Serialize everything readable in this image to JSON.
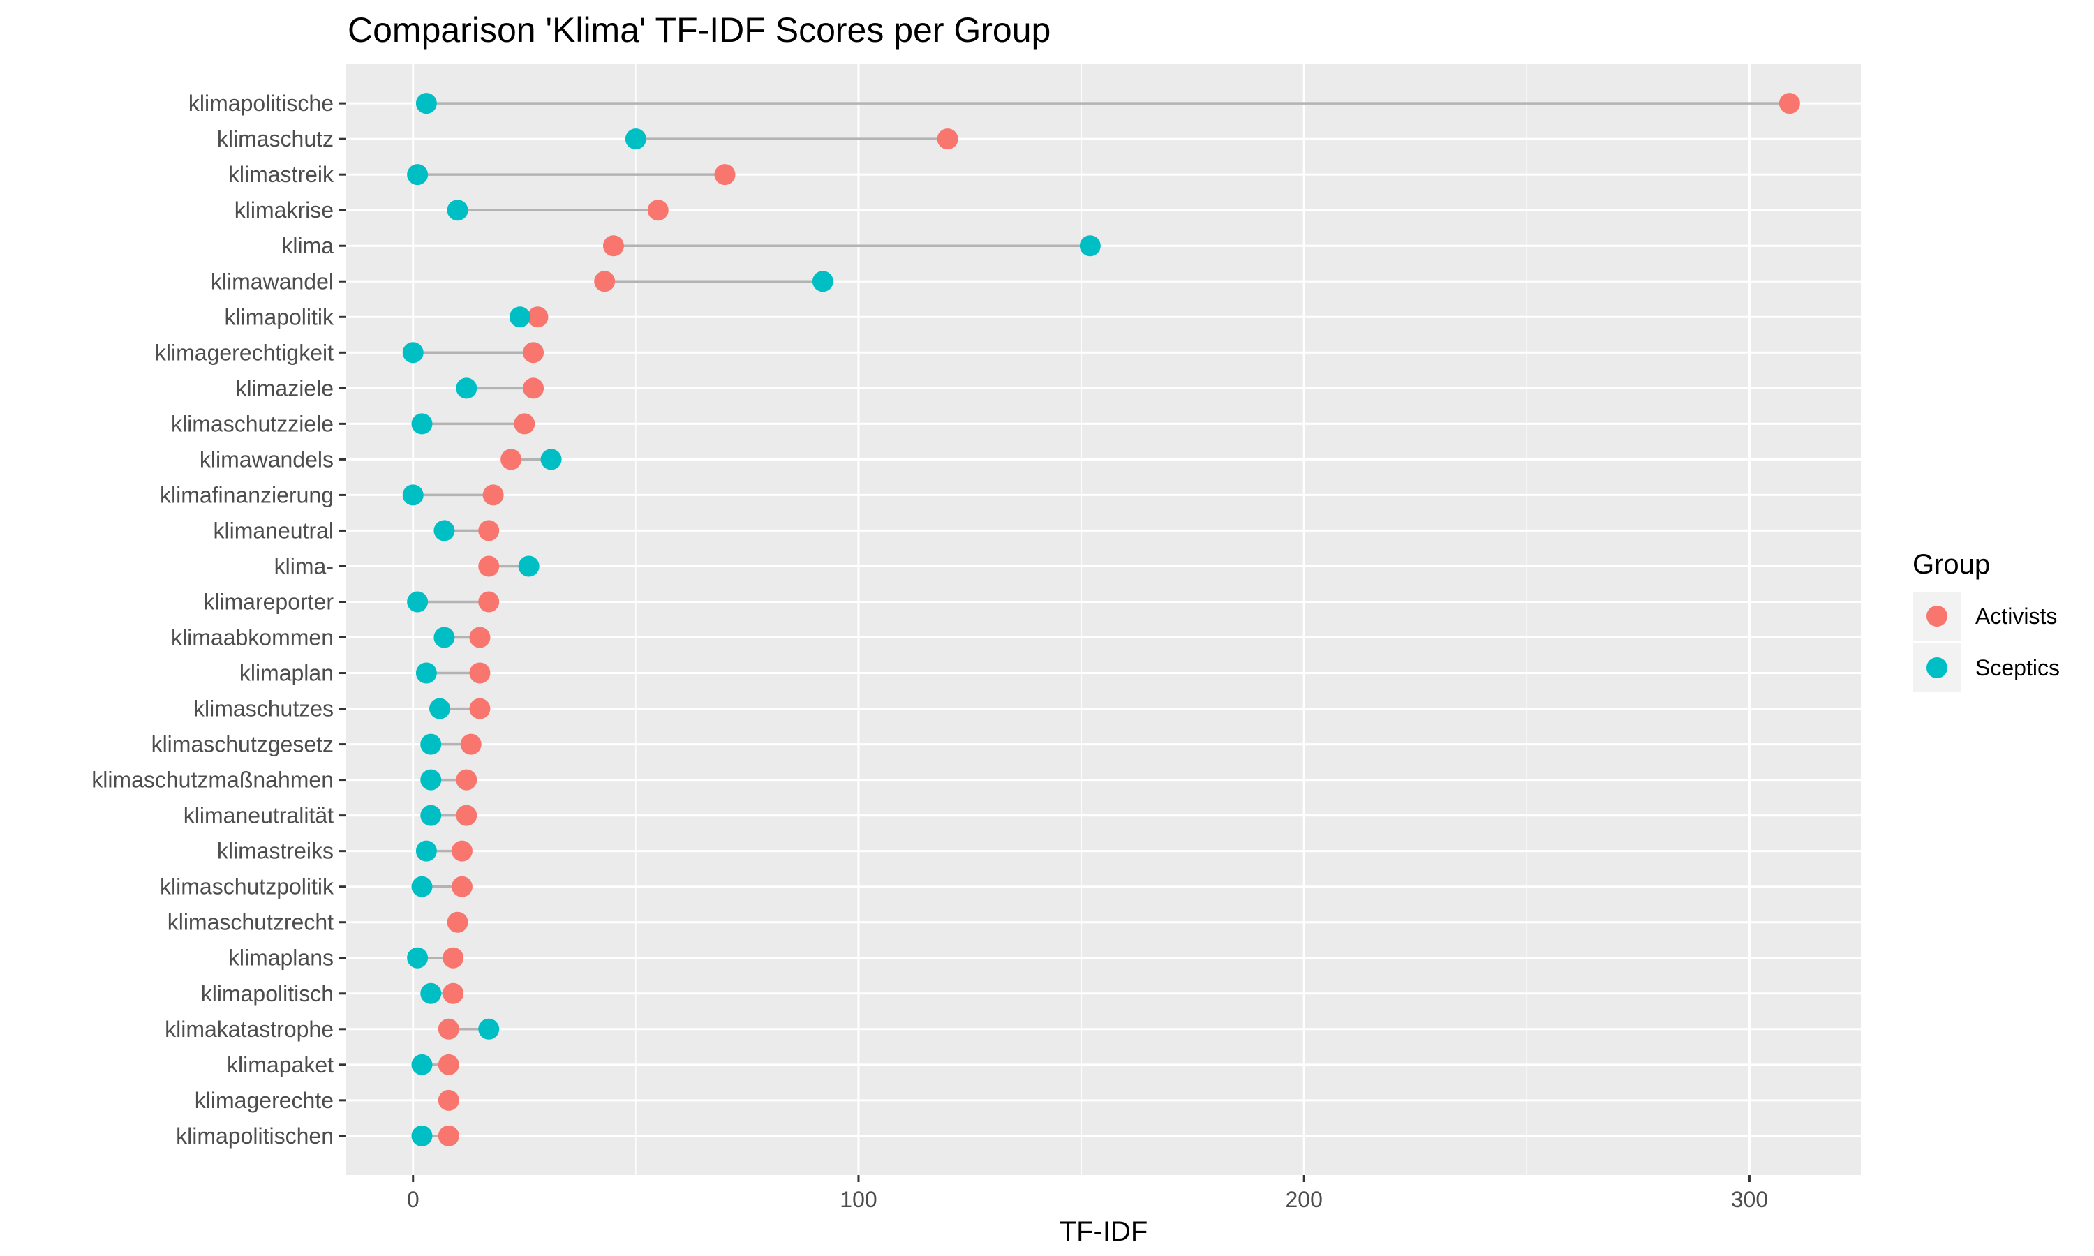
{
  "chart_data": {
    "type": "dot",
    "title": "Comparison 'Klima' TF-IDF Scores per Group",
    "xlabel": "TF-IDF",
    "ylabel": "",
    "xlim": [
      -15,
      325
    ],
    "x_ticks": [
      0,
      100,
      200,
      300
    ],
    "grid": true,
    "legend": {
      "title": "Group",
      "position": "right"
    },
    "categories": [
      "klimapolitische",
      "klimaschutz",
      "klimastreik",
      "klimakrise",
      "klima",
      "klimawandel",
      "klimapolitik",
      "klimagerechtigkeit",
      "klimaziele",
      "klimaschutzziele",
      "klimawandels",
      "klimafinanzierung",
      "klimaneutral",
      "klima-",
      "klimareporter",
      "klimaabkommen",
      "klimaplan",
      "klimaschutzes",
      "klimaschutzgesetz",
      "klimaschutzmaßnahmen",
      "klimaneutralität",
      "klimastreiks",
      "klimaschutzpolitik",
      "klimaschutzrecht",
      "klimaplans",
      "klimapolitisch",
      "klimakatastrophe",
      "klimapaket",
      "klimagerechte",
      "klimapolitischen"
    ],
    "series": [
      {
        "name": "Activists",
        "color": "#F8766D",
        "values": [
          309,
          120,
          70,
          55,
          45,
          43,
          28,
          27,
          27,
          25,
          22,
          18,
          17,
          17,
          17,
          15,
          15,
          15,
          13,
          12,
          12,
          11,
          11,
          10,
          9,
          9,
          8,
          8,
          8,
          8
        ]
      },
      {
        "name": "Sceptics",
        "color": "#00BFC4",
        "values": [
          3,
          50,
          1,
          10,
          152,
          92,
          24,
          0,
          12,
          2,
          31,
          0,
          7,
          26,
          1,
          7,
          3,
          6,
          4,
          4,
          4,
          3,
          2,
          null,
          1,
          4,
          17,
          2,
          null,
          2
        ]
      }
    ]
  }
}
